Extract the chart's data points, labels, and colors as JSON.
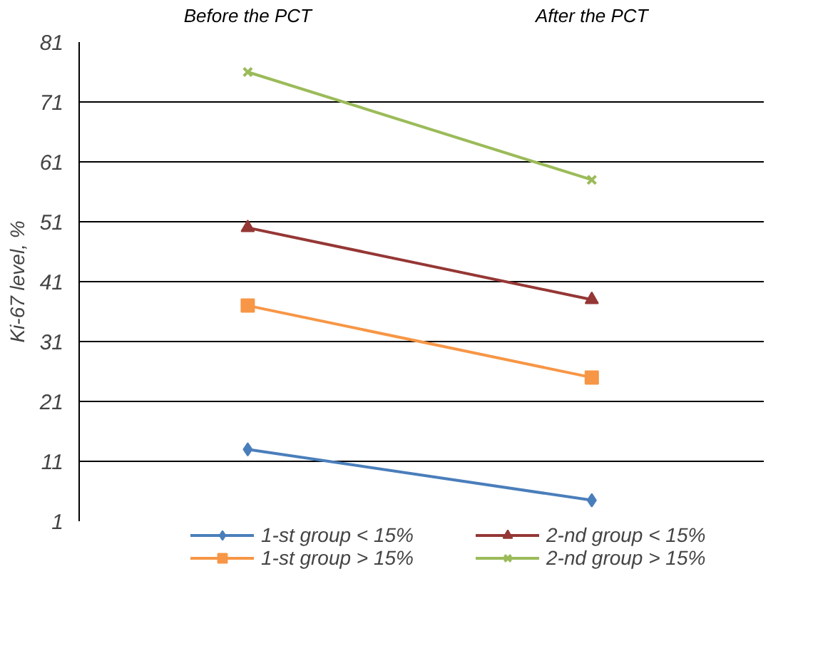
{
  "chart_data": {
    "type": "line",
    "categories": [
      "Before the PCT",
      "After the PCT"
    ],
    "ylabel": "Ki-67 level, %",
    "ylim": [
      1,
      81
    ],
    "yticks": [
      1,
      11,
      21,
      31,
      41,
      51,
      61,
      71,
      81
    ],
    "grid": "y",
    "legend": "bottom",
    "series": [
      {
        "name": "1-st group < 15%",
        "color": "#4a7ebb",
        "marker": "diamond",
        "values": [
          13,
          4.5
        ]
      },
      {
        "name": "1-st group > 15%",
        "color": "#f79646",
        "marker": "square",
        "values": [
          37,
          25
        ]
      },
      {
        "name": "2-nd group < 15%",
        "color": "#953735",
        "marker": "triangle",
        "values": [
          50,
          38
        ]
      },
      {
        "name": "2-nd group > 15%",
        "color": "#9bbb59",
        "marker": "cross",
        "values": [
          76,
          58
        ]
      }
    ]
  }
}
